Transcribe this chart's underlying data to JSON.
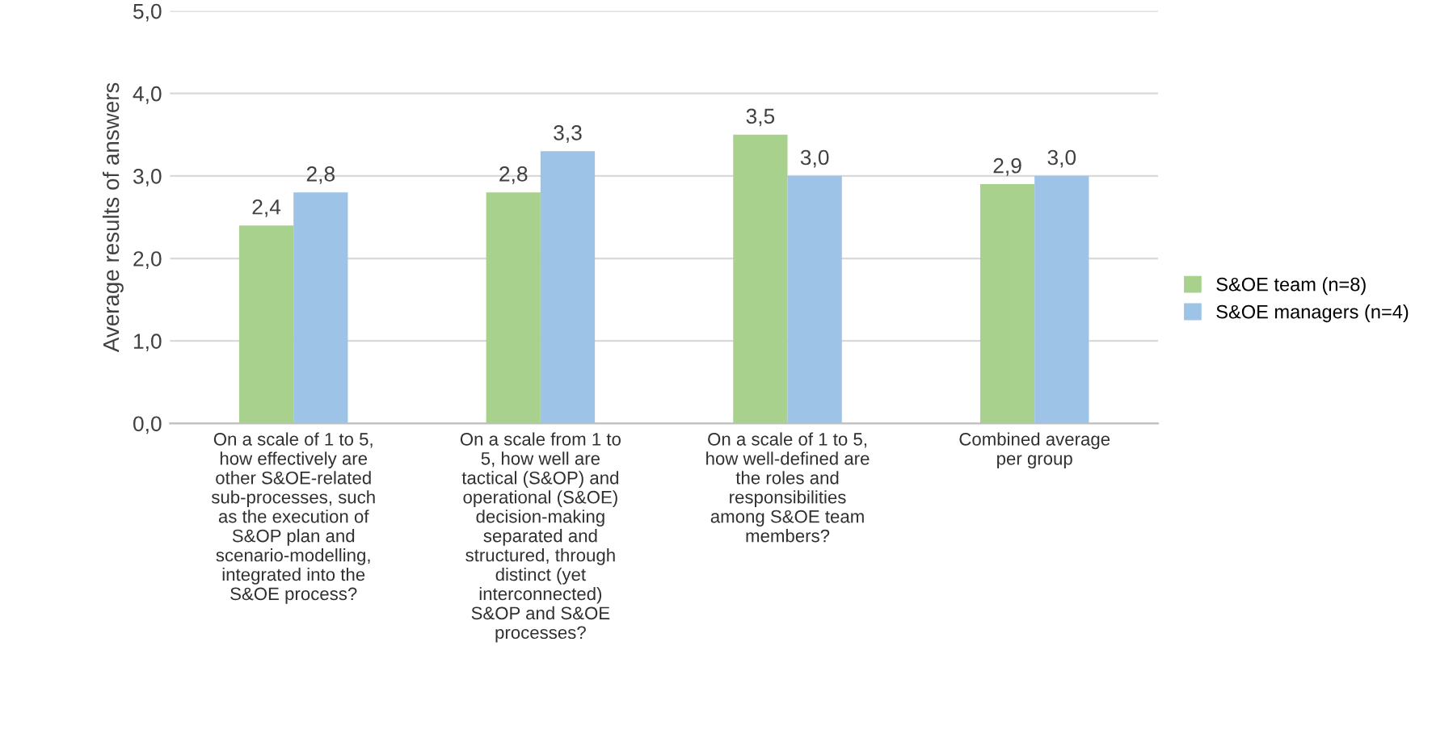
{
  "chart_data": {
    "type": "bar",
    "ylabel": "Average results of answers",
    "categories": [
      "On a scale of 1 to 5,\nhow effectively are\nother S&OE-related\nsub-processes, such\nas the execution of\nS&OP plan and\nscenario-modelling,\nintegrated into the\nS&OE process?",
      "On a scale from 1 to\n5, how well are\ntactical (S&OP) and\noperational (S&OE)\ndecision-making\nseparated and\nstructured, through\ndistinct (yet\ninterconnected)\nS&OP and S&OE\nprocesses?",
      "On a scale of 1 to 5,\nhow well-defined are\nthe roles and\nresponsibilities\namong S&OE team\nmembers?",
      "Combined average\nper group"
    ],
    "series": [
      {
        "name": "S&OE team (n=8)",
        "color": "#a9d18e",
        "values": [
          2.4,
          2.8,
          3.5,
          2.9
        ],
        "value_labels": [
          "2,4",
          "2,8",
          "3,5",
          "2,9"
        ]
      },
      {
        "name": "S&OE managers (n=4)",
        "color": "#9dc3e6",
        "values": [
          2.8,
          3.3,
          3.0,
          3.0
        ],
        "value_labels": [
          "2,8",
          "3,3",
          "3,0",
          "3,0"
        ]
      }
    ],
    "ylim": [
      0,
      5
    ],
    "yticks": [
      {
        "value": 0,
        "label": "0,0"
      },
      {
        "value": 1,
        "label": "1,0"
      },
      {
        "value": 2,
        "label": "2,0"
      },
      {
        "value": 3,
        "label": "3,0"
      },
      {
        "value": 4,
        "label": "4,0"
      },
      {
        "value": 5,
        "label": "5,0"
      }
    ],
    "grid": "y",
    "legend": "right"
  }
}
